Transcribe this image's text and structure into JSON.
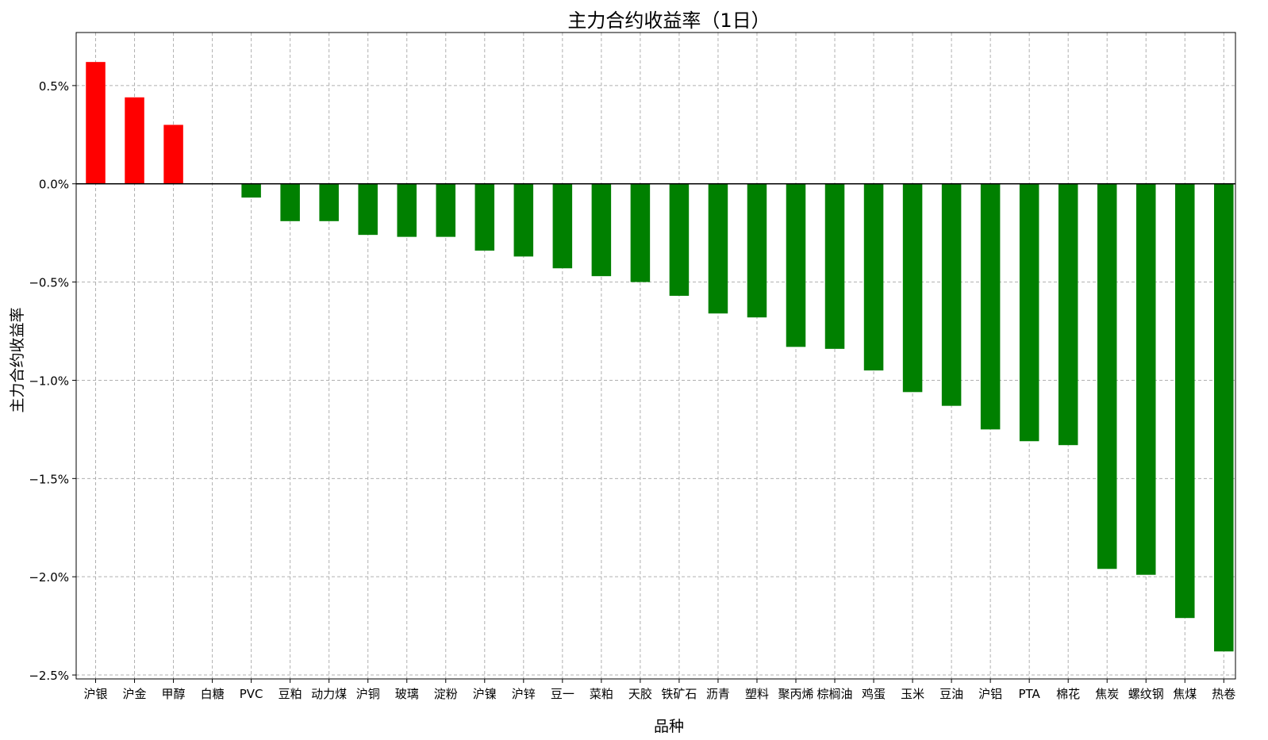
{
  "chart_data": {
    "type": "bar",
    "title": "主力合约收益率（1日）",
    "xlabel": "品种",
    "ylabel": "主力合约收益率",
    "categories": [
      "沪银",
      "沪金",
      "甲醇",
      "白糖",
      "PVC",
      "豆粕",
      "动力煤",
      "沪铜",
      "玻璃",
      "淀粉",
      "沪镍",
      "沪锌",
      "豆一",
      "菜粕",
      "天胶",
      "铁矿石",
      "沥青",
      "塑料",
      "聚丙烯",
      "棕榈油",
      "鸡蛋",
      "玉米",
      "豆油",
      "沪铝",
      "PTA",
      "棉花",
      "焦炭",
      "螺纹钢",
      "焦煤",
      "热卷"
    ],
    "values": [
      0.62,
      0.44,
      0.3,
      0.0,
      -0.07,
      -0.19,
      -0.19,
      -0.26,
      -0.27,
      -0.27,
      -0.34,
      -0.37,
      -0.43,
      -0.47,
      -0.5,
      -0.57,
      -0.66,
      -0.68,
      -0.83,
      -0.84,
      -0.95,
      -1.06,
      -1.13,
      -1.25,
      -1.31,
      -1.33,
      -1.96,
      -1.99,
      -2.21,
      -2.38
    ],
    "unit": "%",
    "ylim": [
      -2.52,
      0.77
    ],
    "yticks": [
      -2.5,
      -2.0,
      -1.5,
      -1.0,
      -0.5,
      0.0,
      0.5
    ],
    "ytick_labels": [
      "−2.5%",
      "−2.0%",
      "−1.5%",
      "−1.0%",
      "−0.5%",
      "0.0%",
      "0.5%"
    ],
    "grid": true,
    "colors": {
      "positive": "#ff0000",
      "negative": "#008000"
    }
  }
}
